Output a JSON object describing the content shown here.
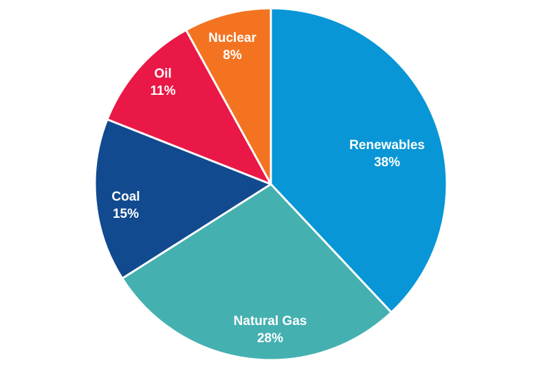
{
  "chart_data": {
    "type": "pie",
    "title": "",
    "start_angle_deg": 0,
    "direction": "clockwise",
    "slices": [
      {
        "label": "Renewables",
        "value": 38,
        "display": "38%",
        "color": "#0896d6"
      },
      {
        "label": "Natural Gas",
        "value": 28,
        "display": "28%",
        "color": "#45b0b0"
      },
      {
        "label": "Coal",
        "value": 15,
        "display": "15%",
        "color": "#114a8f"
      },
      {
        "label": "Oil",
        "value": 11,
        "display": "11%",
        "color": "#ea1846"
      },
      {
        "label": "Nuclear",
        "value": 8,
        "display": "8%",
        "color": "#f37321"
      }
    ],
    "categories": [
      "Renewables",
      "Natural Gas",
      "Coal",
      "Oil",
      "Nuclear"
    ],
    "values": [
      38,
      28,
      15,
      11,
      8
    ],
    "legend": "none (labels inside slices)"
  },
  "labels": {
    "renewables": {
      "name": "Renewables",
      "pct": "38%"
    },
    "natural_gas": {
      "name": "Natural Gas",
      "pct": "28%"
    },
    "coal": {
      "name": "Coal",
      "pct": "15%"
    },
    "oil": {
      "name": "Oil",
      "pct": "11%"
    },
    "nuclear": {
      "name": "Nuclear",
      "pct": "8%"
    }
  }
}
